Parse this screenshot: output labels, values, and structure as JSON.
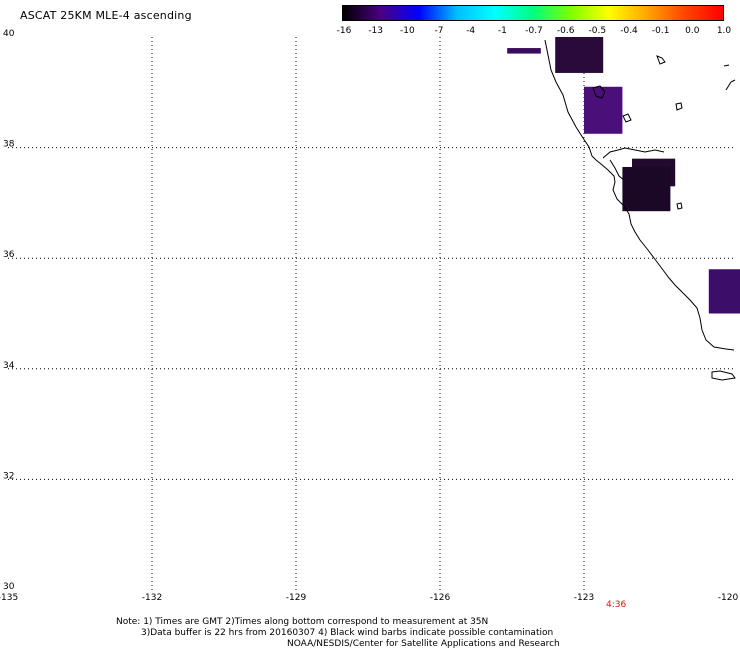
{
  "title": "ASCAT 25KM MLE-4 ascending",
  "colorbar": {
    "labels": [
      "-16",
      "-13",
      "-10",
      "-7",
      "-4",
      "-1",
      "-0.7",
      "-0.6",
      "-0.5",
      "-0.4",
      "-0.1",
      "0.0",
      "1.0"
    ],
    "colors": [
      "#000000",
      "#4b0082",
      "#0000ff",
      "#00bfff",
      "#00ffff",
      "#00ff7f",
      "#7fff00",
      "#ffff00",
      "#ffa500",
      "#ff4500",
      "#ff0000"
    ]
  },
  "axes": {
    "x_ticks": [
      "-135",
      "-132",
      "-129",
      "-126",
      "-123",
      "-120"
    ],
    "y_ticks": [
      "40",
      "38",
      "36",
      "34",
      "32",
      "30"
    ],
    "grid": "dotted"
  },
  "swath_cells": [
    {
      "lon": [
        -124.6,
        -123.9
      ],
      "lat": [
        39.7,
        39.8
      ],
      "color": "#3b0b5e"
    },
    {
      "lon": [
        -123.6,
        -122.6
      ],
      "lat": [
        39.35,
        40.0
      ],
      "color": "#2a0a3a"
    },
    {
      "lon": [
        -123.0,
        -122.2
      ],
      "lat": [
        38.25,
        39.1
      ],
      "color": "#4a0f78"
    },
    {
      "lon": [
        -122.0,
        -121.1
      ],
      "lat": [
        37.3,
        37.8
      ],
      "color": "#220a2e"
    },
    {
      "lon": [
        -122.2,
        -121.2
      ],
      "lat": [
        36.85,
        37.65
      ],
      "color": "#1a0826"
    },
    {
      "lon": [
        -120.4,
        -119.4
      ],
      "lat": [
        35.0,
        35.8
      ],
      "color": "#3d0d6a"
    }
  ],
  "time_label": "4:36",
  "notes": {
    "line1": "Note: 1) Times are GMT 2)Times along bottom correspond to measurement at 35N",
    "line2": "3)Data buffer is 22 hrs from 20160307 4) Black wind barbs indicate possible contamination",
    "line3": "NOAA/NESDIS/Center for Satellite Applications and Research"
  }
}
